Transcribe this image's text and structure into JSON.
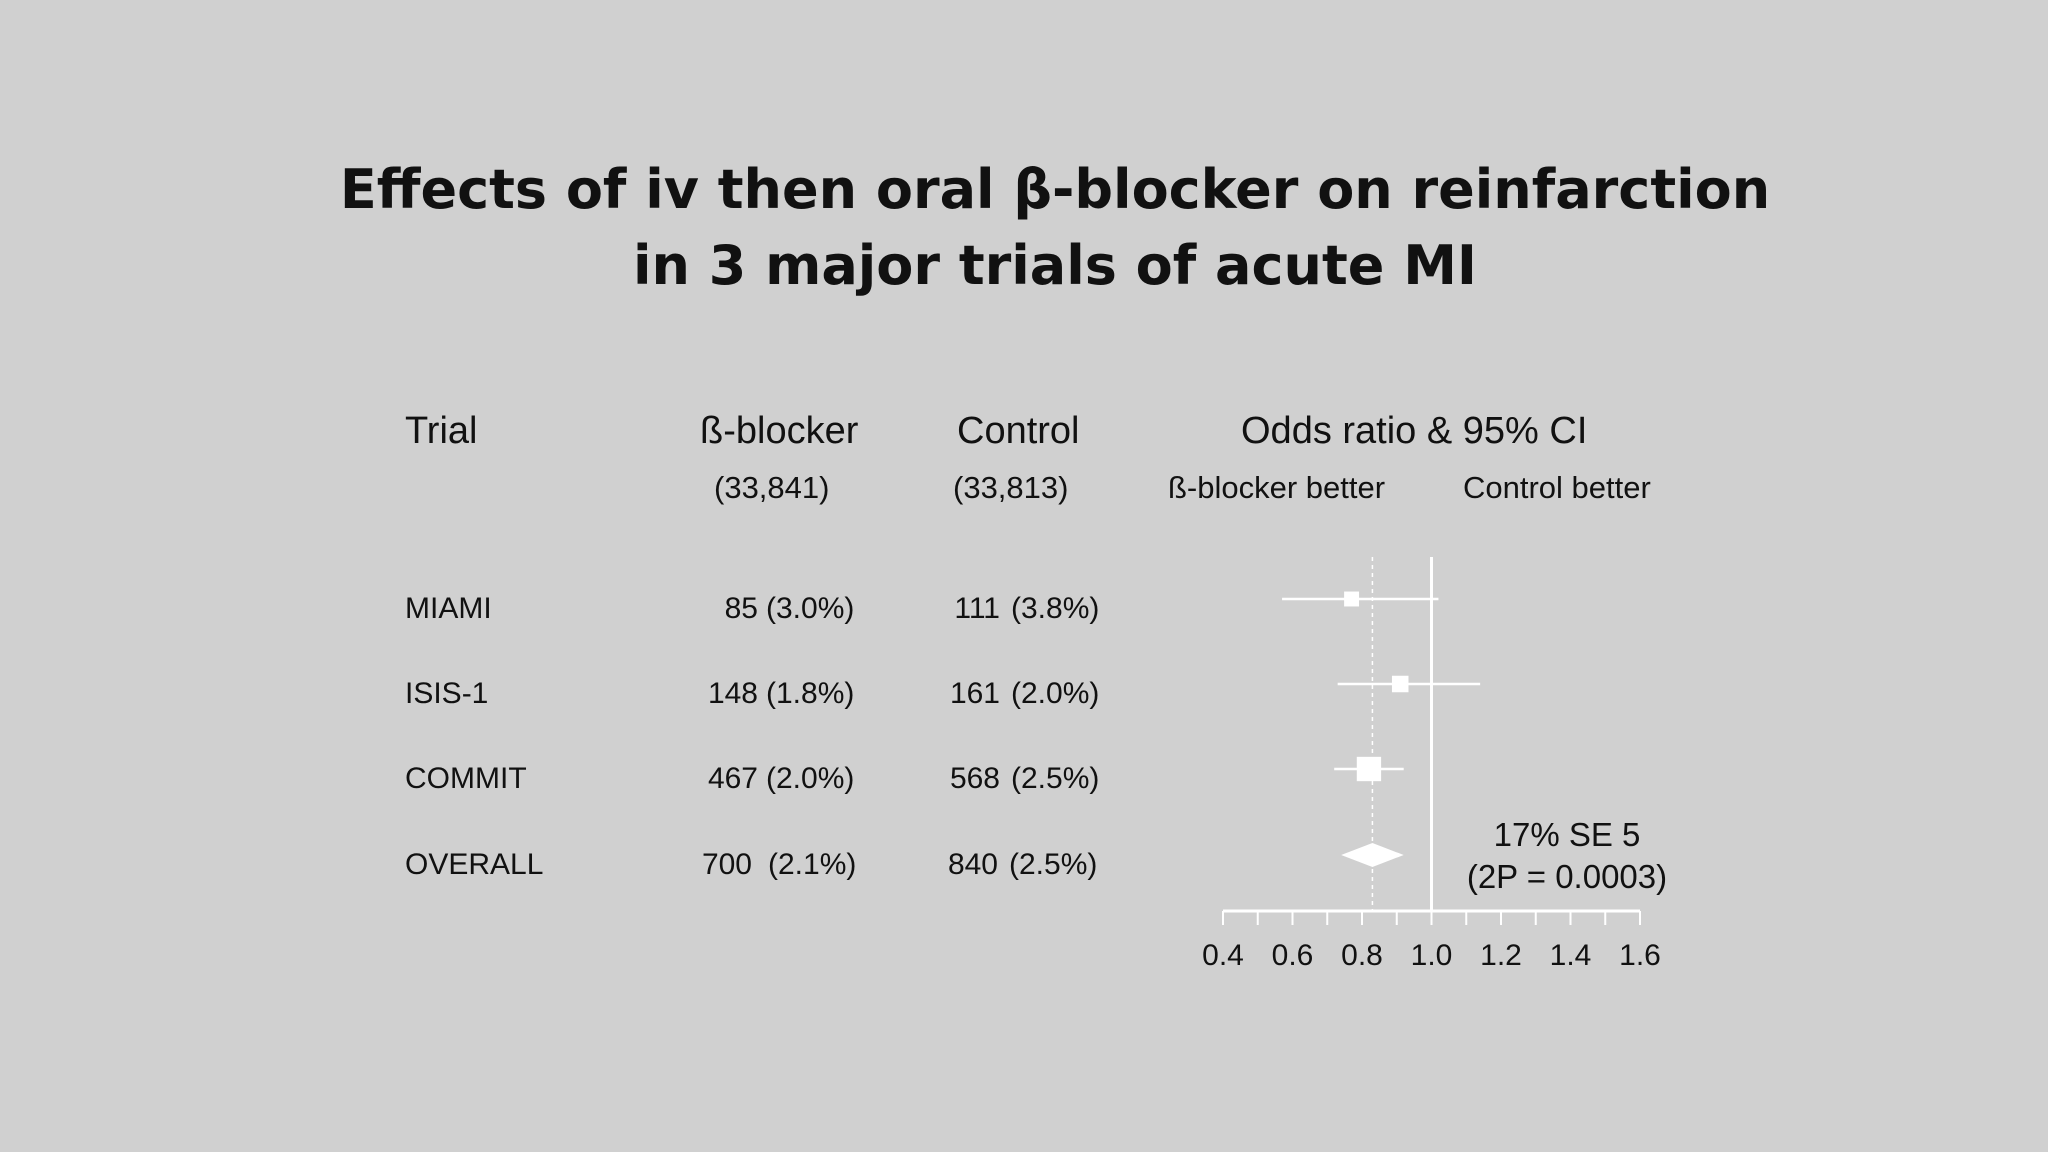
{
  "title_line1": "Effects of iv then oral β-blocker on reinfarction",
  "title_line2": "in 3 major trials of acute MI",
  "headers": {
    "trial": "Trial",
    "beta": "ß-blocker",
    "control": "Control",
    "or": "Odds ratio & 95% CI"
  },
  "subheaders": {
    "beta_n": "(33,841)",
    "control_n": "(33,813)",
    "beta_better": "ß-blocker better",
    "control_better": "Control better"
  },
  "rows": [
    {
      "trial": "MIAMI",
      "beta_events": "85",
      "beta_pct": "(3.0%)",
      "ctrl_events": "111",
      "ctrl_pct": "(3.8%)"
    },
    {
      "trial": "ISIS-1",
      "beta_events": "148",
      "beta_pct": "(1.8%)",
      "ctrl_events": "161",
      "ctrl_pct": "(2.0%)"
    },
    {
      "trial": "COMMIT",
      "beta_events": "467",
      "beta_pct": "(2.0%)",
      "ctrl_events": "568",
      "ctrl_pct": "(2.5%)"
    },
    {
      "trial": "OVERALL",
      "beta_events": "700",
      "beta_pct": "(2.1%)",
      "ctrl_events": "840",
      "ctrl_pct": "(2.5%)"
    }
  ],
  "summary": {
    "line1": "17% SE 5",
    "line2": "(2P = 0.0003)"
  },
  "chart_data": {
    "type": "forest",
    "xlim": [
      0.4,
      1.6
    ],
    "ticks": [
      "0.4",
      "0.6",
      "0.8",
      "1.0",
      "1.2",
      "1.4",
      "1.6"
    ],
    "reference_line": 1.0,
    "pooled_line": 0.83,
    "studies": [
      {
        "name": "MIAMI",
        "or": 0.77,
        "lo": 0.57,
        "hi": 1.02,
        "weight": 0.1
      },
      {
        "name": "ISIS-1",
        "or": 0.91,
        "lo": 0.73,
        "hi": 1.14,
        "weight": 0.15
      },
      {
        "name": "COMMIT",
        "or": 0.82,
        "lo": 0.72,
        "hi": 0.92,
        "weight": 0.55
      }
    ],
    "overall": {
      "name": "OVERALL",
      "or": 0.83,
      "lo": 0.74,
      "hi": 0.92
    },
    "colors": {
      "marks": "#ffffff",
      "background": "#d0d0d0",
      "text": "#111111"
    }
  }
}
